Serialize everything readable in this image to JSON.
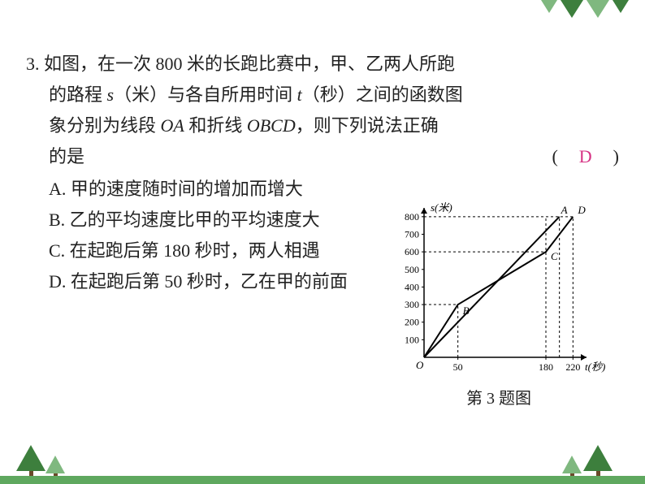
{
  "question": {
    "number": "3.",
    "line1": "如图，在一次 800 米的长跑比赛中，甲、乙两人所跑",
    "line2_a": "的路程 ",
    "line2_s": "s",
    "line2_b": "（米）与各自所用时间 ",
    "line2_t": "t",
    "line2_c": "（秒）之间的函数图",
    "line3_a": "象分别为线段 ",
    "line3_oa": "OA",
    "line3_b": " 和折线 ",
    "line3_obcd": "OBCD",
    "line3_c": "，则下列说法正确",
    "line4": "的是",
    "answer_letter": "D"
  },
  "options": {
    "A": "A. 甲的速度随时间的增加而增大",
    "B": "B. 乙的平均速度比甲的平均速度大",
    "C": "C. 在起跑后第 180 秒时，两人相遇",
    "D": "D. 在起跑后第 50 秒时，乙在甲的前面"
  },
  "chart": {
    "type": "line",
    "caption": "第 3 题图",
    "x_label": "t(秒)",
    "y_label": "s(米)",
    "origin_label": "O",
    "x_ticks": [
      50,
      180,
      220
    ],
    "y_ticks": [
      100,
      200,
      300,
      400,
      500,
      600,
      700,
      800
    ],
    "xlim": [
      0,
      240
    ],
    "ylim": [
      0,
      850
    ],
    "series_OA": {
      "points": [
        [
          0,
          0
        ],
        [
          200,
          800
        ]
      ],
      "color": "#000000",
      "width": 2
    },
    "series_OBCD": {
      "points": [
        [
          0,
          0
        ],
        [
          50,
          300
        ],
        [
          180,
          600
        ],
        [
          220,
          800
        ]
      ],
      "color": "#000000",
      "width": 2
    },
    "point_labels": {
      "A": [
        200,
        800
      ],
      "D": [
        220,
        800
      ],
      "B": [
        50,
        300
      ],
      "C": [
        180,
        600
      ]
    },
    "axis_color": "#000000",
    "dash_color": "#000000",
    "background": "#ffffff",
    "tick_fontsize": 12,
    "label_fontsize": 13
  }
}
